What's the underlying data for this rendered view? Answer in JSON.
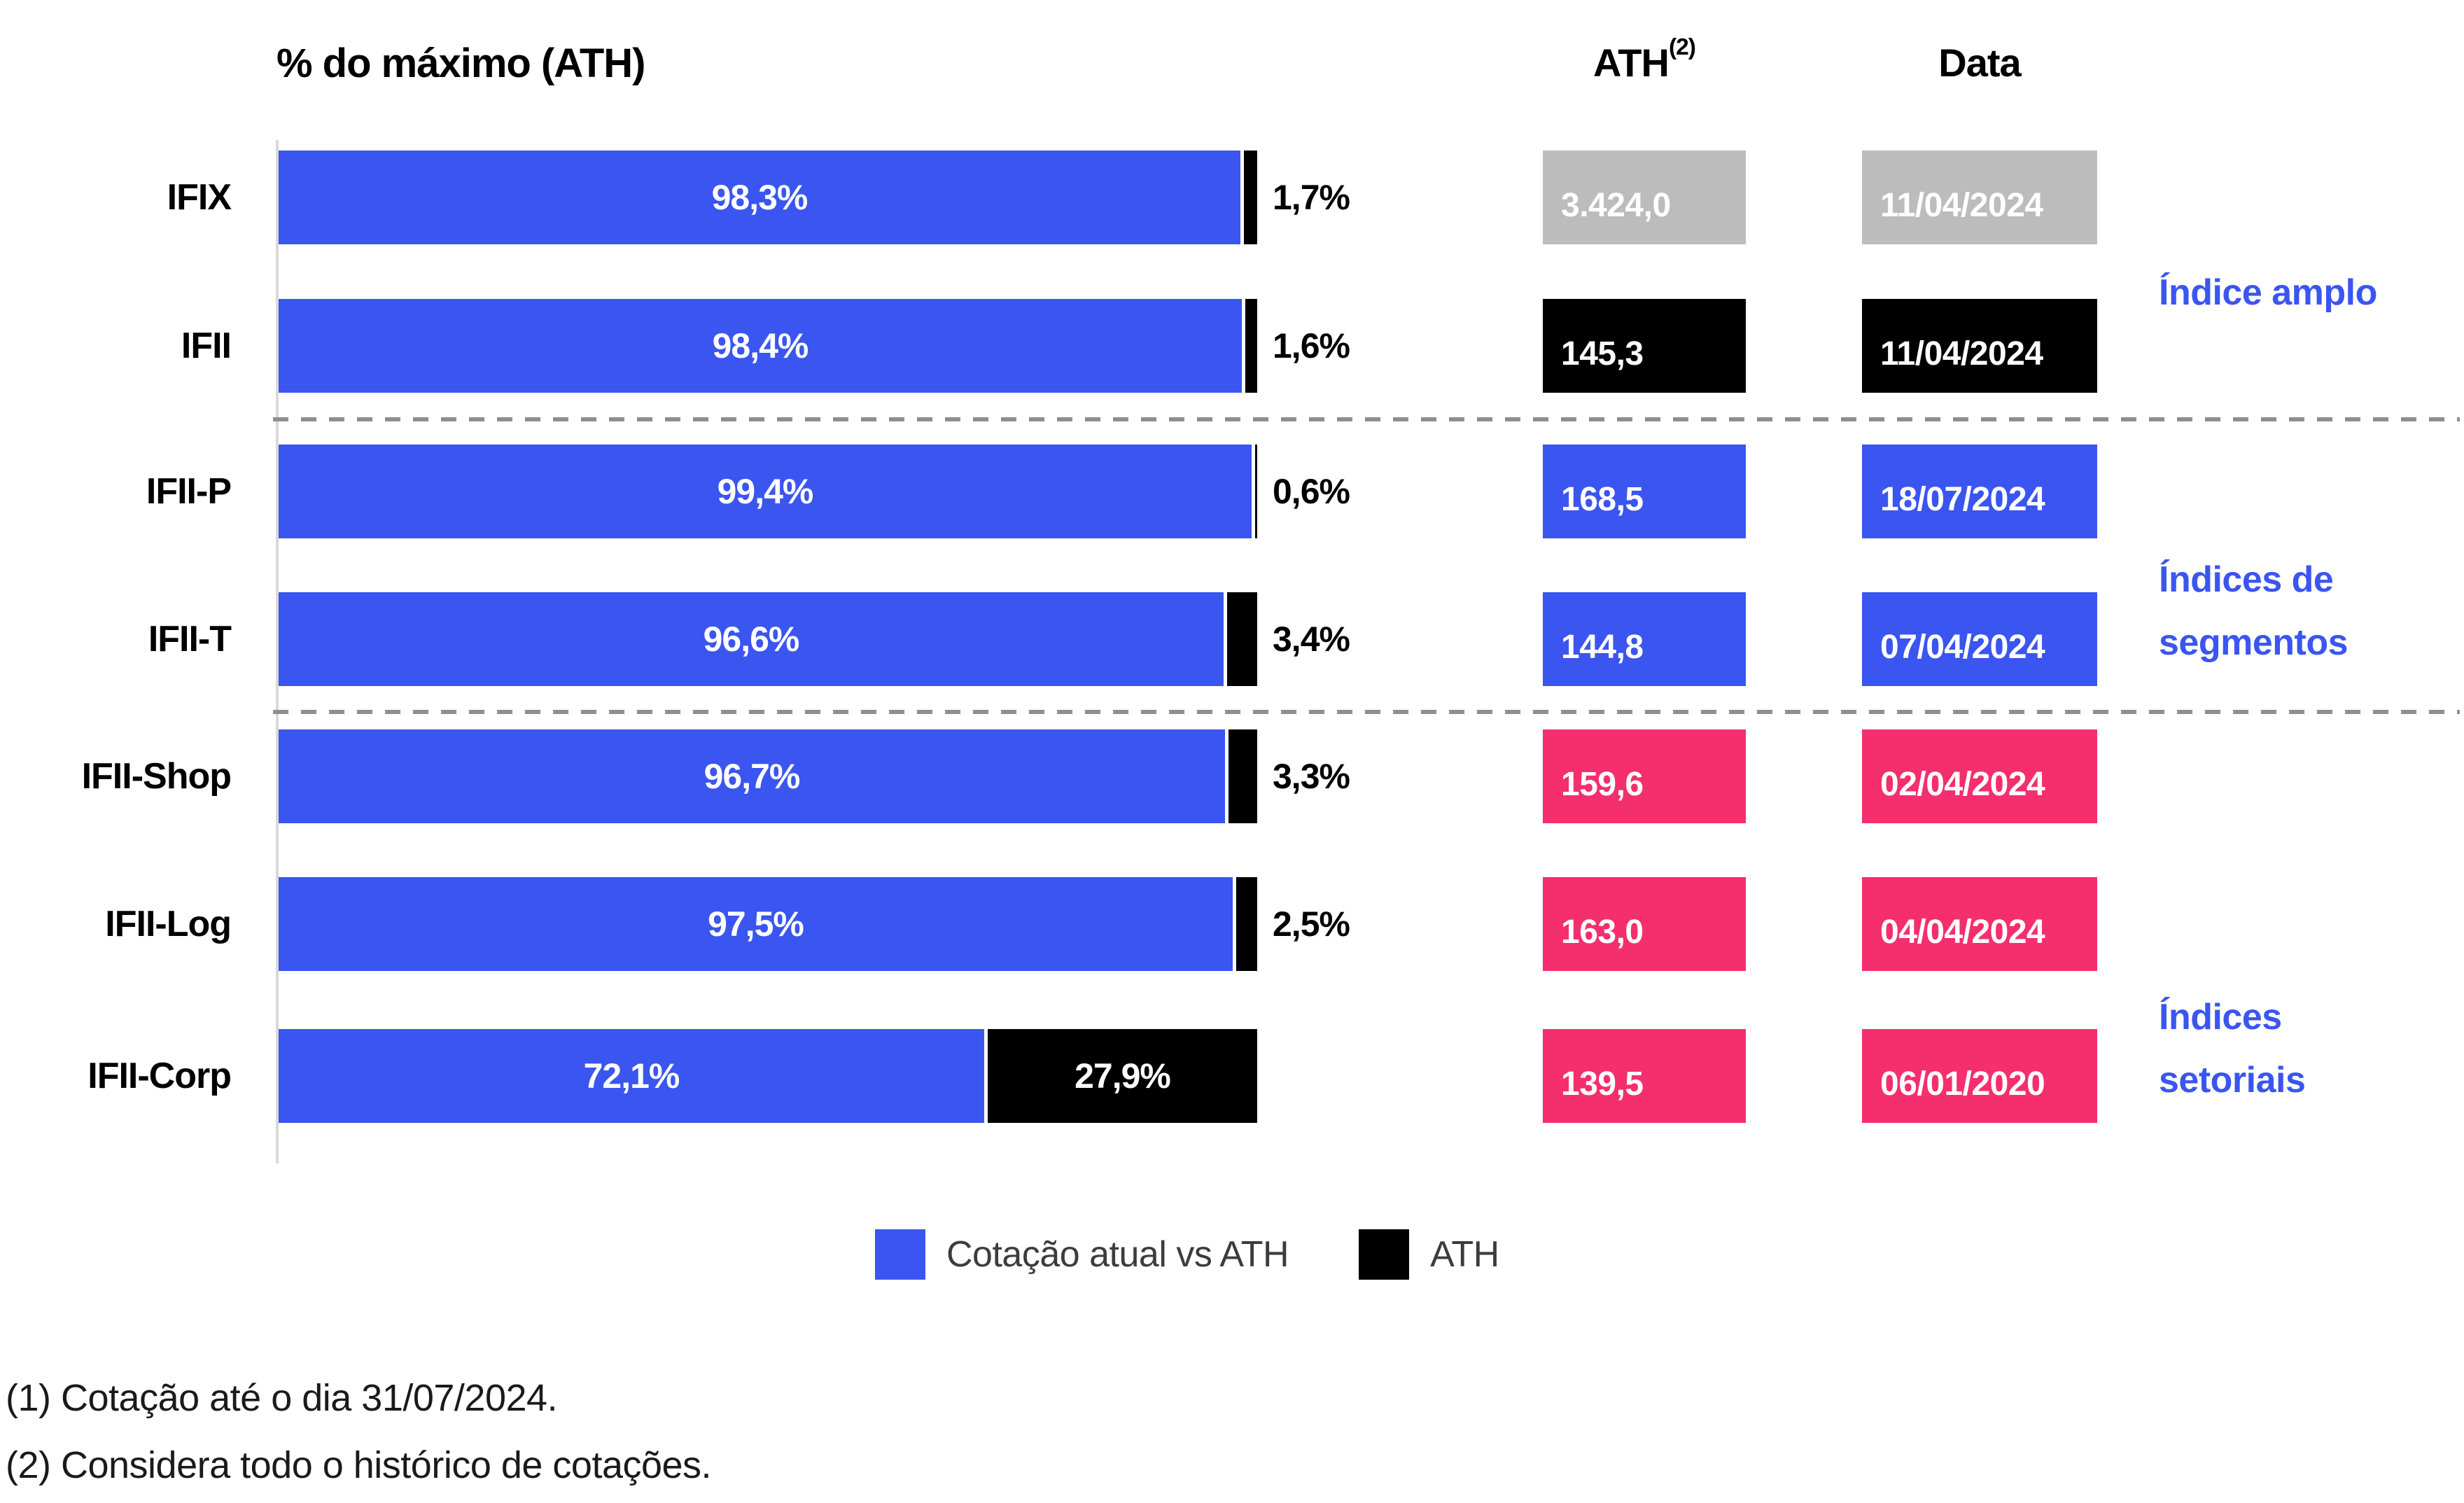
{
  "title": "% do máximo (ATH)",
  "columns": {
    "ath_header": "ATH",
    "ath_superscript": "(2)",
    "date_header": "Data"
  },
  "legend": {
    "items": [
      {
        "label": "Cotação atual vs ATH",
        "color": "#3a55f0"
      },
      {
        "label": "ATH",
        "color": "#000000"
      }
    ]
  },
  "footnotes": [
    "(1) Cotação até o dia 31/07/2024.",
    "(2) Considera todo o histórico de cotações."
  ],
  "groups": [
    {
      "name": "indice-amplo",
      "lines": [
        "Índice amplo"
      ]
    },
    {
      "name": "indices-de-segmentos",
      "lines": [
        "Índices de",
        "segmentos"
      ]
    },
    {
      "name": "indices-setoriais",
      "lines": [
        "Índices",
        "setoriais"
      ]
    }
  ],
  "colors": {
    "bar_blue": "#3a55f0",
    "bar_black": "#000000",
    "box_gray": "#bcbcbc",
    "box_black": "#000000",
    "box_blue": "#3a55f0",
    "box_pink": "#f52e6e",
    "group_label_blue": "#3a55f0",
    "axis_gray": "#d9d9d9",
    "dashed_gray": "#8f8f8f",
    "legend_text": "#3c3c3c"
  },
  "chart_data": {
    "type": "bar",
    "orientation": "horizontal",
    "stacked": true,
    "title": "% do máximo (ATH)",
    "xlim": [
      0,
      100
    ],
    "grid": false,
    "legend_position": "bottom",
    "categories": [
      "IFIX",
      "IFII",
      "IFII-P",
      "IFII-T",
      "IFII-Shop",
      "IFII-Log",
      "IFII-Corp"
    ],
    "series": [
      {
        "name": "Cotação atual vs ATH",
        "values": [
          98.3,
          98.4,
          99.4,
          96.6,
          96.7,
          97.5,
          72.1
        ]
      },
      {
        "name": "ATH",
        "values": [
          1.7,
          1.6,
          0.6,
          3.4,
          3.3,
          2.5,
          27.9
        ]
      }
    ],
    "rows": [
      {
        "category": "IFIX",
        "pct": 98.3,
        "pct_label": "98,3%",
        "rem": 1.7,
        "rem_label": "1,7%",
        "rem_inside": false,
        "ath": "3.424,0",
        "date": "11/04/2024",
        "box_color": "#bcbcbc",
        "group": "Índice amplo"
      },
      {
        "category": "IFII",
        "pct": 98.4,
        "pct_label": "98,4%",
        "rem": 1.6,
        "rem_label": "1,6%",
        "rem_inside": false,
        "ath": "145,3",
        "date": "11/04/2024",
        "box_color": "#000000",
        "group": "Índice amplo"
      },
      {
        "category": "IFII-P",
        "pct": 99.4,
        "pct_label": "99,4%",
        "rem": 0.6,
        "rem_label": "0,6%",
        "rem_inside": false,
        "ath": "168,5",
        "date": "18/07/2024",
        "box_color": "#3a55f0",
        "group": "Índices de segmentos"
      },
      {
        "category": "IFII-T",
        "pct": 96.6,
        "pct_label": "96,6%",
        "rem": 3.4,
        "rem_label": "3,4%",
        "rem_inside": false,
        "ath": "144,8",
        "date": "07/04/2024",
        "box_color": "#3a55f0",
        "group": "Índices de segmentos"
      },
      {
        "category": "IFII-Shop",
        "pct": 96.7,
        "pct_label": "96,7%",
        "rem": 3.3,
        "rem_label": "3,3%",
        "rem_inside": false,
        "ath": "159,6",
        "date": "02/04/2024",
        "box_color": "#f52e6e",
        "group": "Índices setoriais"
      },
      {
        "category": "IFII-Log",
        "pct": 97.5,
        "pct_label": "97,5%",
        "rem": 2.5,
        "rem_label": "2,5%",
        "rem_inside": false,
        "ath": "163,0",
        "date": "04/04/2024",
        "box_color": "#f52e6e",
        "group": "Índices setoriais"
      },
      {
        "category": "IFII-Corp",
        "pct": 72.1,
        "pct_label": "72,1%",
        "rem": 27.9,
        "rem_label": "27,9%",
        "rem_inside": true,
        "ath": "139,5",
        "date": "06/01/2020",
        "box_color": "#f52e6e",
        "group": "Índices setoriais"
      }
    ]
  }
}
